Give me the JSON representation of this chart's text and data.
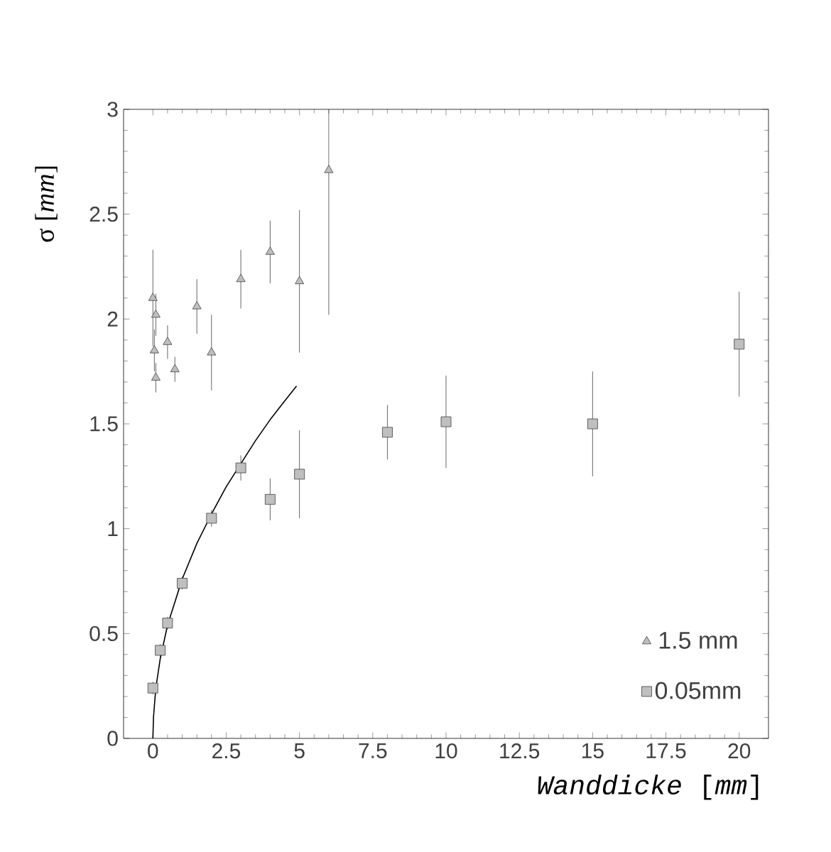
{
  "chart_data": {
    "type": "scatter",
    "xlabel": "*Wanddicke* [*mm*]",
    "ylabel": "σ [*mm*]",
    "xlim": [
      -1,
      21
    ],
    "ylim": [
      0,
      3
    ],
    "xticks": [
      0,
      2.5,
      5,
      7.5,
      10,
      12.5,
      15,
      17.5,
      20
    ],
    "yticks": [
      0,
      0.5,
      1,
      1.5,
      2,
      2.5,
      3
    ],
    "legend": "bottom right",
    "grid": false,
    "series": [
      {
        "name": "1.5 mm",
        "marker": "triangle",
        "color": "#404040",
        "x": [
          0,
          0.1,
          0.05,
          0.1,
          0.5,
          0.75,
          1.5,
          2,
          3,
          4,
          5,
          6
        ],
        "values": [
          2.1,
          2.02,
          1.85,
          1.72,
          1.89,
          1.76,
          2.06,
          1.84,
          2.19,
          2.32,
          2.18,
          2.71
        ],
        "errors": [
          0.23,
          0.1,
          0.1,
          0.07,
          0.08,
          0.06,
          0.13,
          0.18,
          0.14,
          0.15,
          0.34,
          0.69
        ]
      },
      {
        "name": "0.05mm",
        "marker": "square",
        "color": "#404040",
        "x": [
          0,
          0.25,
          0.5,
          1,
          2,
          3,
          4,
          5,
          8,
          10,
          15,
          20
        ],
        "values": [
          0.24,
          0.42,
          0.55,
          0.74,
          1.05,
          1.29,
          1.14,
          1.26,
          1.46,
          1.51,
          1.5,
          1.88
        ],
        "errors": [
          0.03,
          0.03,
          0.03,
          0.03,
          0.04,
          0.06,
          0.1,
          0.21,
          0.13,
          0.22,
          0.25,
          0.25
        ]
      },
      {
        "type": "line",
        "marker": "none",
        "color": "#000000",
        "x": [
          0,
          0.02,
          0.1,
          0.25,
          0.5,
          1,
          1.5,
          2,
          2.5,
          3,
          3.5,
          4,
          4.5,
          4.9
        ],
        "values": [
          0,
          0.1,
          0.24,
          0.38,
          0.54,
          0.76,
          0.93,
          1.07,
          1.2,
          1.31,
          1.42,
          1.52,
          1.61,
          1.68
        ]
      }
    ]
  }
}
